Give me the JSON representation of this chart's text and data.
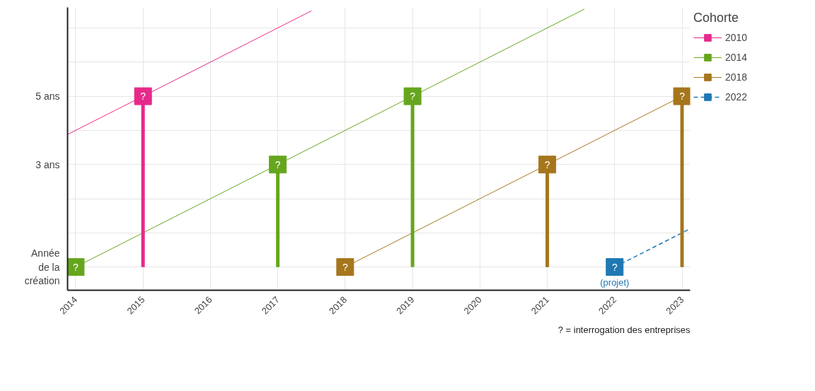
{
  "chart_data": {
    "type": "line",
    "xlim": [
      2013.88,
      2023.12
    ],
    "ylim": [
      -0.68,
      7.6
    ],
    "xticks": [
      2014,
      2015,
      2016,
      2017,
      2018,
      2019,
      2020,
      2021,
      2022,
      2023
    ],
    "yticks": [
      {
        "value": 0,
        "label": "Année\nde la\ncréation"
      },
      {
        "value": 1,
        "label": null
      },
      {
        "value": 2,
        "label": null
      },
      {
        "value": 3,
        "label": "3 ans"
      },
      {
        "value": 4,
        "label": null
      },
      {
        "value": 5,
        "label": "5 ans"
      },
      {
        "value": 6,
        "label": null
      },
      {
        "value": 7,
        "label": null
      }
    ],
    "grid": true,
    "legend": "right",
    "legend_title": "Cohorte",
    "series": [
      {
        "name": "2010",
        "color": "#e7298a",
        "line_style": "solid",
        "x": [
          2013.88,
          2017.5
        ],
        "values": [
          3.88,
          7.5
        ]
      },
      {
        "name": "2014",
        "color": "#66a61e",
        "line_style": "solid",
        "x": [
          2014,
          2021.55
        ],
        "values": [
          0,
          7.55
        ]
      },
      {
        "name": "2018",
        "color": "#a6761d",
        "line_style": "solid",
        "x": [
          2018,
          2023
        ],
        "values": [
          0,
          5
        ]
      },
      {
        "name": "2022",
        "color": "#1f78b4",
        "line_style": "dashed",
        "x": [
          2022,
          2023.12
        ],
        "values": [
          0,
          1.12
        ]
      },
      {
        "type": "lollipop",
        "color": "#e7298a",
        "marker": "square",
        "x": [
          2015
        ],
        "values": [
          5
        ],
        "value_labels": [
          "?"
        ]
      },
      {
        "type": "lollipop",
        "color": "#66a61e",
        "marker": "square",
        "x": [
          2014,
          2017,
          2019
        ],
        "values": [
          0,
          3,
          5
        ],
        "value_labels": [
          "?",
          "?",
          "?"
        ]
      },
      {
        "type": "lollipop",
        "color": "#a6761d",
        "marker": "square",
        "x": [
          2018,
          2021,
          2023
        ],
        "values": [
          0,
          3,
          5
        ],
        "value_labels": [
          "?",
          "?",
          "?"
        ]
      },
      {
        "type": "lollipop",
        "color": "#1f78b4",
        "marker": "square",
        "x": [
          2022
        ],
        "values": [
          0
        ],
        "value_labels": [
          "?"
        ]
      }
    ],
    "annotations": [
      {
        "text": "(projet)",
        "x": 2022,
        "y": 0
      },
      "? = interrogation des entreprises"
    ]
  }
}
